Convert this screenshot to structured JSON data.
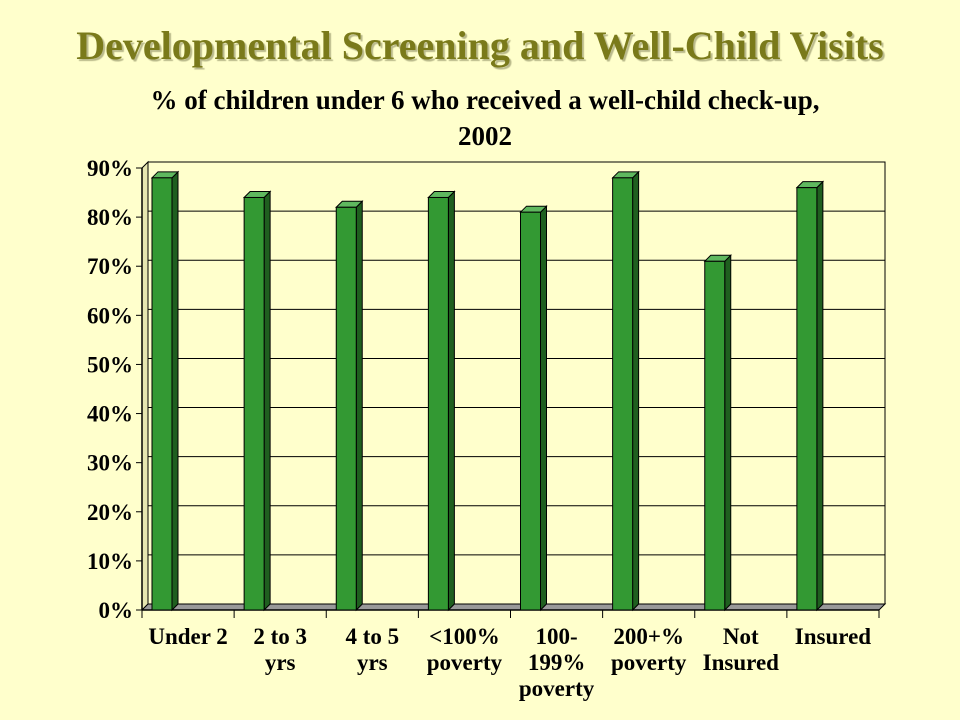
{
  "slide": {
    "title": "Developmental Screening and Well-Child Visits"
  },
  "chart_data": {
    "type": "bar",
    "title_lines": [
      "% of children under 6 who received a well-child check-up,",
      "2002"
    ],
    "categories": [
      [
        "Under 2"
      ],
      [
        "2 to 3",
        "yrs"
      ],
      [
        "4 to 5",
        "yrs"
      ],
      [
        "<100%",
        "poverty"
      ],
      [
        "100-",
        "199%",
        "poverty"
      ],
      [
        "200+%",
        "poverty"
      ],
      [
        "Not",
        "Insured"
      ],
      [
        "Insured"
      ]
    ],
    "values": [
      88,
      84,
      82,
      84,
      81,
      88,
      71,
      86
    ],
    "ylim": [
      0,
      90
    ],
    "yticks": [
      "0%",
      "10%",
      "20%",
      "30%",
      "40%",
      "50%",
      "60%",
      "70%",
      "80%",
      "90%"
    ],
    "grid": true,
    "bar_color": "#339933",
    "plot_background": "#ffffcc"
  }
}
